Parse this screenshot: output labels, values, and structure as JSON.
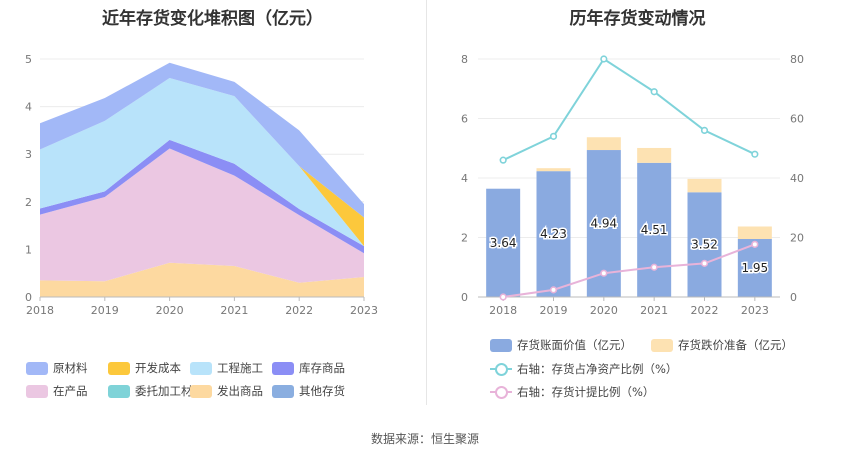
{
  "left_chart": {
    "title": "近年存货变化堆积图（亿元）",
    "y_ticks": [
      "0",
      "1",
      "2",
      "3",
      "4",
      "5"
    ],
    "x_ticks": [
      "2018",
      "2019",
      "2020",
      "2021",
      "2022",
      "2023"
    ]
  },
  "right_chart": {
    "title": "历年存货变动情况",
    "y_left_ticks": [
      "0",
      "2",
      "4",
      "6",
      "8"
    ],
    "y_right_ticks": [
      "0",
      "20",
      "40",
      "60",
      "80"
    ],
    "x_ticks": [
      "2018",
      "2019",
      "2020",
      "2021",
      "2022",
      "2023"
    ]
  },
  "chart_data": [
    {
      "type": "area",
      "title": "近年存货变化堆积图（亿元）",
      "x": [
        "2018",
        "2019",
        "2020",
        "2021",
        "2022",
        "2023"
      ],
      "ylim": [
        0,
        5
      ],
      "stacked": true,
      "series": [
        {
          "name": "发出商品",
          "color": "#fdd9a0",
          "values": [
            0.35,
            0.33,
            0.72,
            0.65,
            0.3,
            0.42
          ]
        },
        {
          "name": "在产品",
          "color": "#ebc7e2",
          "values": [
            1.38,
            1.77,
            2.4,
            1.9,
            1.42,
            0.5
          ]
        },
        {
          "name": "库存商品",
          "color": "#8b8ef5",
          "values": [
            0.13,
            0.12,
            0.18,
            0.25,
            0.13,
            0.15
          ]
        },
        {
          "name": "工程施工",
          "color": "#b8e3fa",
          "values": [
            1.24,
            1.48,
            1.3,
            1.42,
            0.9,
            0.0
          ]
        },
        {
          "name": "开发成本",
          "color": "#fcc83c",
          "values": [
            0.0,
            0.0,
            0.0,
            0.0,
            0.0,
            0.6
          ]
        },
        {
          "name": "原材料",
          "color": "#a2b8f7",
          "values": [
            0.55,
            0.48,
            0.32,
            0.3,
            0.75,
            0.28
          ]
        },
        {
          "name": "委托加工材料",
          "color": "#7fd3d8",
          "values": [
            0,
            0,
            0,
            0,
            0,
            0
          ]
        },
        {
          "name": "其他存货",
          "color": "#8aaee0",
          "values": [
            0,
            0,
            0,
            0,
            0,
            0
          ]
        }
      ],
      "legend_order": [
        "原材料",
        "开发成本",
        "工程施工",
        "库存商品",
        "在产品",
        "委托加工材料",
        "发出商品",
        "其他存货"
      ],
      "legend_position": "bottom"
    },
    {
      "type": "bar",
      "title": "历年存货变动情况",
      "categories": [
        "2018",
        "2019",
        "2020",
        "2021",
        "2022",
        "2023"
      ],
      "ylim_left": [
        0,
        8
      ],
      "ylim_right": [
        0,
        80
      ],
      "bar_series": [
        {
          "name": "存货账面价值（亿元）",
          "color": "#8aaae0",
          "values": [
            3.64,
            4.23,
            4.94,
            4.51,
            3.52,
            1.95
          ],
          "labels": [
            "3.64",
            "4.23",
            "4.94",
            "4.51",
            "3.52",
            "1.95"
          ]
        },
        {
          "name": "存货跌价准备（亿元）",
          "color": "#fde2b2",
          "values": [
            0.0,
            0.1,
            0.43,
            0.5,
            0.45,
            0.42
          ]
        }
      ],
      "line_series": [
        {
          "name": "右轴：存货占净资产比例（%）",
          "color": "#7fd3da",
          "values": [
            46,
            54,
            80,
            69,
            56,
            48
          ]
        },
        {
          "name": "右轴：存货计提比例（%）",
          "color": "#e8b3d9",
          "values": [
            0,
            2.4,
            8,
            10,
            11.3,
            17.7
          ]
        }
      ],
      "legend_position": "bottom"
    }
  ],
  "footer": "数据来源：恒生聚源"
}
